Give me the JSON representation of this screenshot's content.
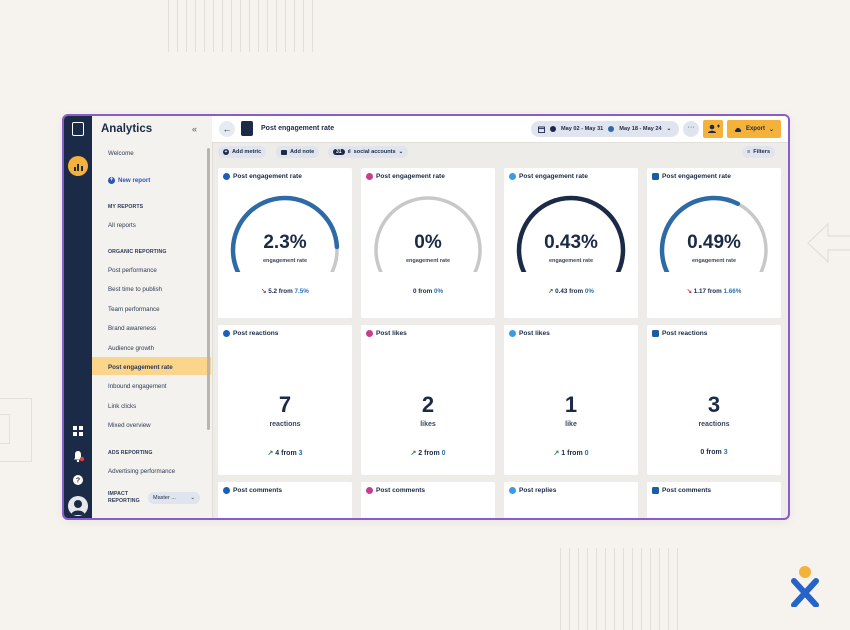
{
  "app": {
    "title": "Analytics",
    "collapse_glyph": "«"
  },
  "sidebar": {
    "welcome": "Welcome",
    "new_report": "New report",
    "my_reports_heading": "MY REPORTS",
    "all_reports": "All reports",
    "organic_heading": "ORGANIC REPORTING",
    "organic_items": [
      {
        "label": "Post performance"
      },
      {
        "label": "Best time to publish"
      },
      {
        "label": "Team performance"
      },
      {
        "label": "Brand awareness"
      },
      {
        "label": "Audience growth"
      },
      {
        "label": "Post engagement rate",
        "active": true
      },
      {
        "label": "Inbound engagement"
      },
      {
        "label": "Link clicks"
      },
      {
        "label": "Mixed overview"
      }
    ],
    "ads_heading": "ADS REPORTING",
    "ads_items": [
      {
        "label": "Advertising performance"
      }
    ],
    "impact_heading_1": "IMPACT",
    "impact_heading_2": "REPORTING",
    "impact_select": "Master ...",
    "active_color": "#fbd58c"
  },
  "header": {
    "back_glyph": "←",
    "page_title": "Post engagement rate",
    "date_range_1": "May 02 - May 31",
    "date_range_2": "May 18 - May 24",
    "more_glyph": "···",
    "export_label": "Export"
  },
  "toolbar": {
    "add_metric": "Add metric",
    "add_note": "Add note",
    "accounts_count": "31",
    "accounts_label": "social accounts",
    "filters": "Filters"
  },
  "gauge_cards": [
    {
      "network": "fb",
      "title": "Post engagement rate",
      "value": "2.3%",
      "label": "engagement rate",
      "trend": "down",
      "arrow": "↘",
      "delta": "5.2",
      "from_text": "from",
      "ref": "7.5%",
      "fill": 0.82,
      "color": "#2d6aa6"
    },
    {
      "network": "ig",
      "title": "Post engagement rate",
      "value": "0%",
      "label": "engagement rate",
      "trend": "flat",
      "arrow": "",
      "delta": "0",
      "from_text": "from",
      "ref": "0%",
      "fill": 0,
      "color": "#1b2a47"
    },
    {
      "network": "tw",
      "title": "Post engagement rate",
      "value": "0.43%",
      "label": "engagement rate",
      "trend": "up",
      "arrow": "↗",
      "delta": "0.43",
      "from_text": "from",
      "ref": "0%",
      "fill": 1,
      "color": "#1b2a47"
    },
    {
      "network": "li",
      "title": "Post engagement rate",
      "value": "0.49%",
      "label": "engagement rate",
      "trend": "down",
      "arrow": "↘",
      "delta": "1.17",
      "from_text": "from",
      "ref": "1.66%",
      "fill": 0.6,
      "color": "#2d6aa6"
    }
  ],
  "count_cards": [
    {
      "network": "fb",
      "title": "Post reactions",
      "value": "7",
      "label": "reactions",
      "trend": "up",
      "arrow": "↗",
      "delta": "4",
      "from_text": "from",
      "ref": "3"
    },
    {
      "network": "ig",
      "title": "Post likes",
      "value": "2",
      "label": "likes",
      "trend": "up",
      "arrow": "↗",
      "delta": "2",
      "from_text": "from",
      "ref": "0"
    },
    {
      "network": "tw",
      "title": "Post likes",
      "value": "1",
      "label": "like",
      "trend": "up",
      "arrow": "↗",
      "delta": "1",
      "from_text": "from",
      "ref": "0"
    },
    {
      "network": "li",
      "title": "Post reactions",
      "value": "3",
      "label": "reactions",
      "trend": "flat",
      "arrow": "",
      "delta": "0",
      "from_text": "from",
      "ref": "3"
    }
  ],
  "bottom_cards": [
    {
      "network": "fb",
      "title": "Post comments"
    },
    {
      "network": "ig",
      "title": "Post comments"
    },
    {
      "network": "tw",
      "title": "Post replies"
    },
    {
      "network": "li",
      "title": "Post comments"
    }
  ],
  "colors": {
    "navy": "#1b2a47",
    "accent": "#f5b23a",
    "window_border": "#8a5cc8",
    "up": "#2a8a45",
    "down": "#c23b3b",
    "gauge_track": "#c8c8c8"
  }
}
